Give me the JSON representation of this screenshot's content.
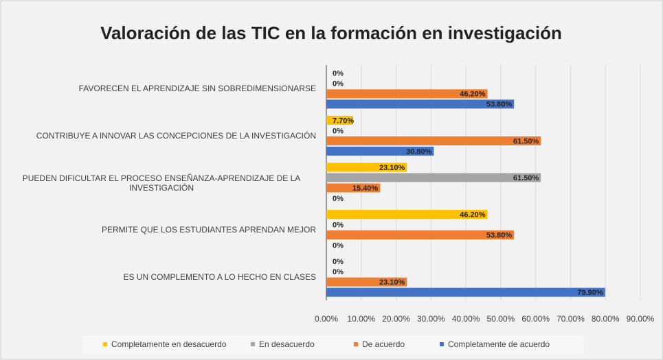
{
  "chart_data": {
    "type": "hbar",
    "title": "Valoración de las TIC en la formación en investigación",
    "categories": [
      "FAVORECEN EL APRENDIZAJE SIN SOBREDIMENSIONARSE",
      "CONTRIBUYE A INNOVAR LAS CONCEPCIONES DE LA INVESTIGACIÓN",
      "PUEDEN DIFICULTAR EL PROCESO ENSEÑANZA-APRENDIZAJE DE LA INVESTIGACIÓN",
      "PERMITE QUE LOS ESTUDIANTES APRENDAN MEJOR",
      "ES UN COMPLEMENTO A LO HECHO EN CLASES"
    ],
    "series": [
      {
        "name": "Completamente en desacuerdo",
        "color": "#ffc000",
        "values": [
          0,
          7.7,
          23.1,
          46.2,
          0
        ],
        "value_labels": [
          "0%",
          "7.70%",
          "23.10%",
          "46.20%",
          "0%"
        ]
      },
      {
        "name": "En desacuerdo",
        "color": "#a5a5a5",
        "values": [
          0,
          0,
          61.5,
          0,
          0
        ],
        "value_labels": [
          "0%",
          "0%",
          "61.50%",
          "0%",
          "0%"
        ]
      },
      {
        "name": "De acuerdo",
        "color": "#ed7d31",
        "values": [
          46.2,
          61.5,
          15.4,
          53.8,
          23.1
        ],
        "value_labels": [
          "46.20%",
          "61.50%",
          "15.40%",
          "53.80%",
          "23.10%"
        ]
      },
      {
        "name": "Completamente de acuerdo",
        "color": "#4472c4",
        "values": [
          53.8,
          30.8,
          0,
          0,
          79.9
        ],
        "value_labels": [
          "53.80%",
          "30.80%",
          "0%",
          "0%",
          "79.90%"
        ]
      }
    ],
    "xlim": [
      0,
      90
    ],
    "xticks": [
      {
        "value": 0,
        "label": "0.00%"
      },
      {
        "value": 10,
        "label": "10.00%"
      },
      {
        "value": 20,
        "label": "20.00%"
      },
      {
        "value": 30,
        "label": "30.00%"
      },
      {
        "value": 40,
        "label": "40.00%"
      },
      {
        "value": 50,
        "label": "50.00%"
      },
      {
        "value": 60,
        "label": "60.00%"
      },
      {
        "value": 70,
        "label": "70.00%"
      },
      {
        "value": 80,
        "label": "80.00%"
      },
      {
        "value": 90,
        "label": "90.00%"
      }
    ],
    "grid": true,
    "legend": "bottom"
  }
}
